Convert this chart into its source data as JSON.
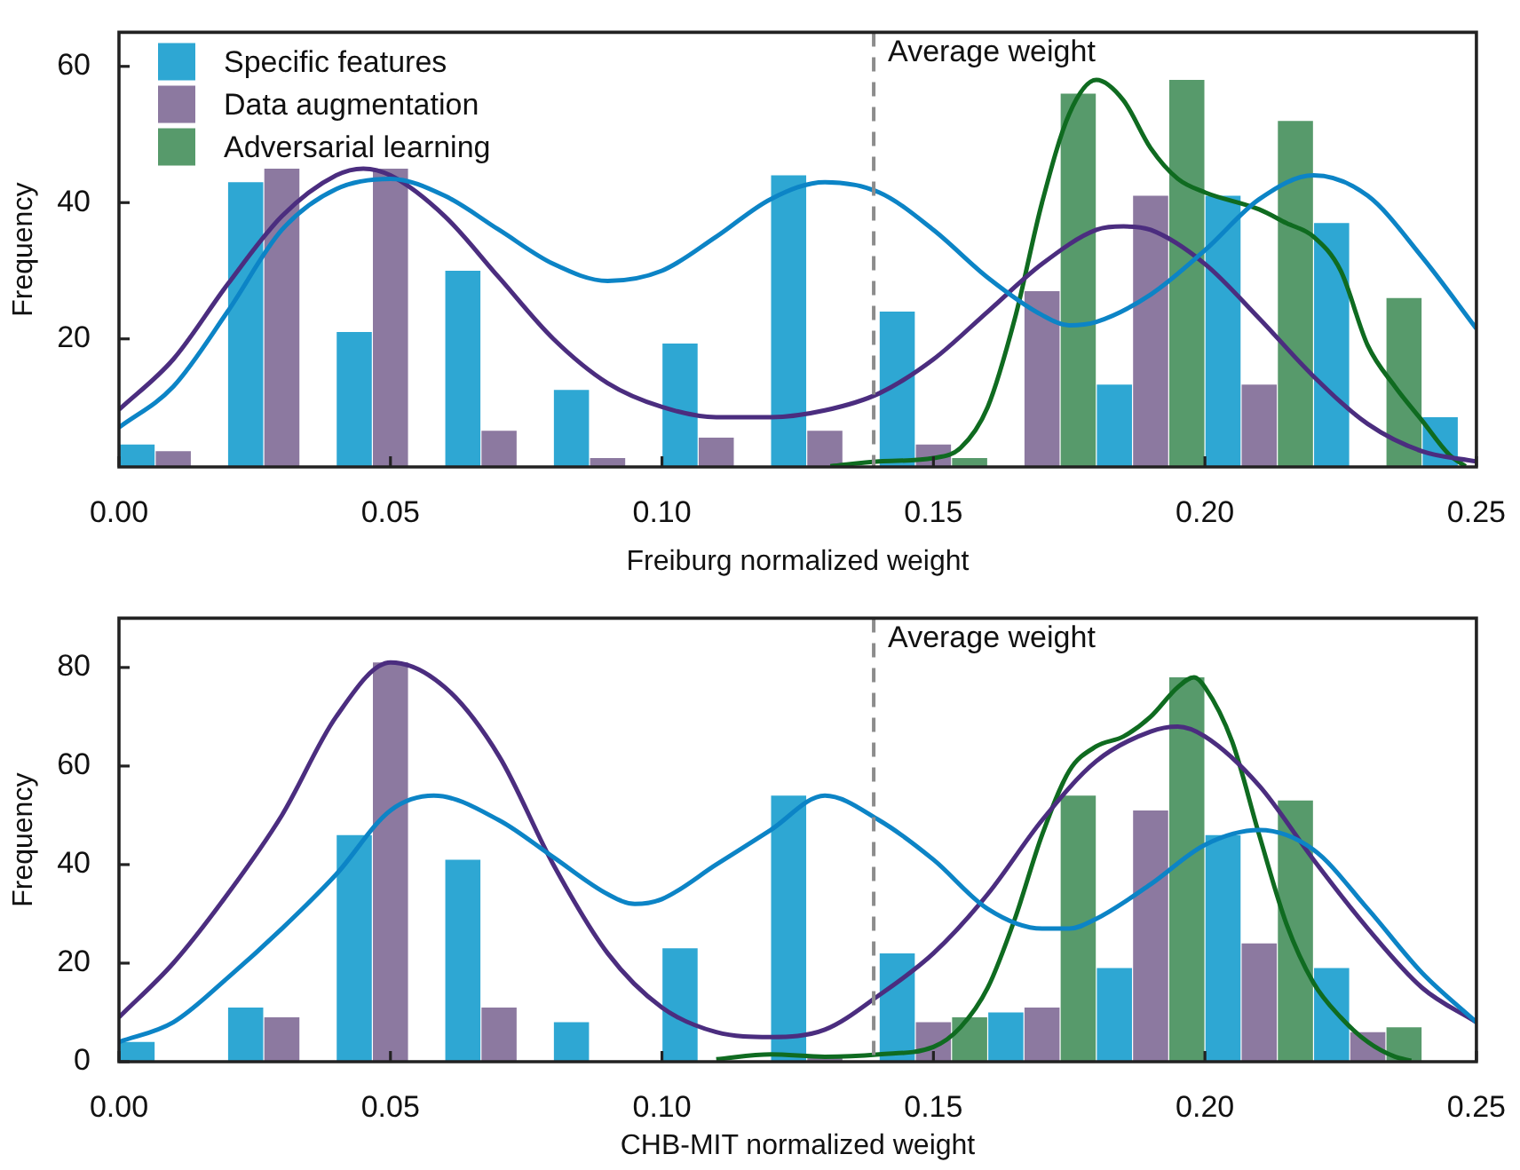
{
  "chart_data": [
    {
      "type": "histogram",
      "xlabel": "Freiburg normalized weight",
      "ylabel": "Frequency",
      "legend": "top left",
      "bins": [
        0,
        0.02,
        0.04,
        0.06,
        0.08,
        0.1,
        0.12,
        0.14,
        0.16,
        0.18,
        0.2,
        0.22,
        0.24,
        0.26
      ],
      "xlim": [
        0,
        0.25
      ],
      "xticks": [
        {
          "value": 0,
          "label": "0.00"
        },
        {
          "value": 0.05,
          "label": "0.05"
        },
        {
          "value": 0.1,
          "label": "0.10"
        },
        {
          "value": 0.15,
          "label": "0.15"
        },
        {
          "value": 0.2,
          "label": "0.20"
        },
        {
          "value": 0.25,
          "label": "0.25"
        }
      ],
      "ylim": [
        1.2,
        65
      ],
      "yticks": [
        20,
        40,
        60
      ],
      "ref_lines": [
        {
          "axis": "x",
          "value": 0.139,
          "label": "Average weight",
          "color": "#8c8c8c",
          "line_style": "dashed"
        }
      ],
      "series": [
        {
          "name": "Specific features",
          "color": "#2ea7d3",
          "values": [
            4.5,
            43,
            21,
            30,
            12.5,
            19.3,
            44,
            24,
            null,
            13.3,
            41,
            37,
            8.5
          ]
        },
        {
          "name": "Data augmentation",
          "color": "#8c79a0",
          "values": [
            3.5,
            45,
            45,
            6.5,
            2.5,
            5.5,
            6.5,
            4.5,
            27,
            41,
            13.3,
            null,
            null
          ]
        },
        {
          "name": "Adversarial learning",
          "color": "#579a6b",
          "values": [
            null,
            null,
            null,
            null,
            null,
            null,
            null,
            2.5,
            56,
            58,
            52,
            26,
            null
          ]
        },
        {
          "type": "line",
          "color": "#0c84c6",
          "x": [
            0,
            0.01,
            0.02,
            0.03,
            0.04,
            0.05,
            0.06,
            0.07,
            0.08,
            0.09,
            0.1,
            0.11,
            0.12,
            0.13,
            0.14,
            0.15,
            0.16,
            0.17,
            0.175,
            0.18,
            0.19,
            0.2,
            0.21,
            0.22,
            0.23,
            0.24,
            0.25
          ],
          "values": [
            7,
            13,
            24,
            36,
            42,
            43.5,
            41,
            36,
            31,
            28.5,
            30,
            35,
            40.5,
            43,
            41.5,
            36,
            29,
            23.5,
            22,
            22.5,
            26.5,
            33,
            40.5,
            44,
            41,
            32,
            21.5
          ]
        },
        {
          "type": "line",
          "color": "#4b2d7f",
          "x": [
            0,
            0.01,
            0.02,
            0.03,
            0.04,
            0.045,
            0.05,
            0.06,
            0.07,
            0.08,
            0.09,
            0.1,
            0.11,
            0.12,
            0.13,
            0.14,
            0.15,
            0.16,
            0.17,
            0.18,
            0.185,
            0.19,
            0.2,
            0.21,
            0.22,
            0.23,
            0.24,
            0.25
          ],
          "values": [
            9.6,
            17,
            28,
            38,
            44,
            45,
            44,
            38,
            29,
            20,
            13.5,
            10,
            8.5,
            8.5,
            9.5,
            12,
            17,
            24,
            31,
            36,
            36.5,
            36,
            31,
            23,
            14.5,
            7.5,
            3.5,
            2
          ]
        },
        {
          "type": "line",
          "color": "#0f6b20",
          "x": [
            0.131,
            0.14,
            0.15,
            0.155,
            0.16,
            0.165,
            0.17,
            0.175,
            0.18,
            0.185,
            0.19,
            0.195,
            0.2,
            0.21,
            0.215,
            0.22,
            0.225,
            0.23,
            0.235,
            0.24,
            0.245,
            0.248
          ],
          "values": [
            1.3,
            2,
            2.5,
            4,
            10,
            23,
            40,
            53,
            58,
            55,
            48,
            43.5,
            41.5,
            39,
            37,
            35,
            30,
            19,
            13,
            8,
            3,
            1.3
          ]
        }
      ]
    },
    {
      "type": "histogram",
      "xlabel": "CHB-MIT normalized weight",
      "ylabel": "Frequency",
      "bins": [
        0,
        0.02,
        0.04,
        0.06,
        0.08,
        0.1,
        0.12,
        0.14,
        0.16,
        0.18,
        0.2,
        0.22,
        0.24
      ],
      "xlim": [
        0,
        0.25
      ],
      "xticks": [
        {
          "value": 0,
          "label": "0.00"
        },
        {
          "value": 0.05,
          "label": "0.05"
        },
        {
          "value": 0.1,
          "label": "0.10"
        },
        {
          "value": 0.15,
          "label": "0.15"
        },
        {
          "value": 0.2,
          "label": "0.20"
        },
        {
          "value": 0.25,
          "label": "0.25"
        }
      ],
      "ylim": [
        0,
        90
      ],
      "yticks": [
        0,
        20,
        40,
        60,
        80
      ],
      "ref_lines": [
        {
          "axis": "x",
          "value": 0.139,
          "label": "Average weight",
          "color": "#8c8c8c",
          "line_style": "dashed"
        }
      ],
      "series": [
        {
          "color": "#2ea7d3",
          "values": [
            4,
            11,
            46,
            41,
            8,
            23,
            54,
            22,
            10,
            19,
            46,
            19
          ]
        },
        {
          "color": "#8c79a0",
          "values": [
            0,
            9,
            81,
            11,
            0,
            0,
            1,
            8,
            11,
            51,
            24,
            6
          ]
        },
        {
          "color": "#579a6b",
          "values": [
            0,
            0,
            0,
            0,
            0,
            0,
            0,
            9,
            54,
            78,
            53,
            7
          ]
        },
        {
          "type": "line",
          "color": "#0c84c6",
          "x": [
            0,
            0.01,
            0.02,
            0.03,
            0.04,
            0.05,
            0.058,
            0.07,
            0.08,
            0.09,
            0.095,
            0.1,
            0.11,
            0.12,
            0.13,
            0.14,
            0.15,
            0.16,
            0.17,
            0.175,
            0.18,
            0.19,
            0.2,
            0.21,
            0.22,
            0.23,
            0.24,
            0.25
          ],
          "values": [
            4,
            8,
            17,
            27,
            38,
            51,
            54,
            49,
            41.5,
            34,
            32,
            33,
            40,
            47,
            54,
            49,
            41,
            31,
            27,
            27,
            29,
            36,
            44,
            47,
            43,
            31,
            18,
            8
          ]
        },
        {
          "type": "line",
          "color": "#4b2d7f",
          "x": [
            0,
            0.01,
            0.02,
            0.03,
            0.04,
            0.05,
            0.06,
            0.07,
            0.08,
            0.09,
            0.1,
            0.11,
            0.12,
            0.13,
            0.14,
            0.15,
            0.16,
            0.17,
            0.18,
            0.19,
            0.195,
            0.2,
            0.21,
            0.22,
            0.23,
            0.24,
            0.25
          ],
          "values": [
            9,
            20,
            34,
            50,
            70,
            81,
            76,
            62,
            40,
            22,
            11,
            6,
            5,
            6.5,
            13.5,
            22,
            34,
            49,
            61,
            67,
            68,
            66,
            56,
            41,
            27,
            15,
            8
          ]
        },
        {
          "type": "line",
          "color": "#0f6b20",
          "x": [
            0.11,
            0.12,
            0.13,
            0.14,
            0.15,
            0.155,
            0.16,
            0.165,
            0.17,
            0.175,
            0.18,
            0.185,
            0.19,
            0.195,
            0.198,
            0.2,
            0.205,
            0.21,
            0.215,
            0.22,
            0.225,
            0.23,
            0.235,
            0.238
          ],
          "values": [
            0.5,
            1.5,
            1,
            1.5,
            3,
            7,
            15,
            29,
            46,
            59,
            64,
            66,
            70,
            76,
            78,
            76,
            65,
            46,
            28,
            16,
            9,
            4,
            1,
            0.2
          ]
        }
      ]
    }
  ]
}
